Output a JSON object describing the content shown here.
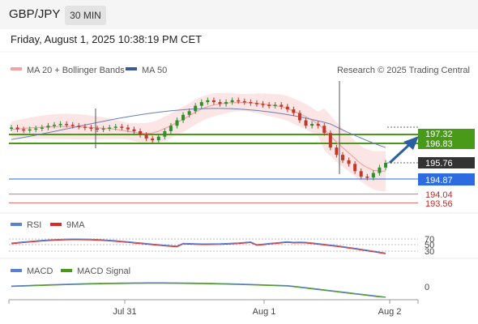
{
  "header": {
    "symbol": "GBP/JPY",
    "timeframe": "30 MIN"
  },
  "datetime": "Friday, August 1, 2025 10:38:19 PM CET",
  "legend_main": [
    {
      "label": "MA 20 + Bollinger Bands",
      "color": "#f4a3a3"
    },
    {
      "label": "MA 50",
      "color": "#3a5a9c"
    }
  ],
  "credit": "Research © 2025 Trading Central",
  "legend_rsi": [
    {
      "label": "RSI",
      "color": "#5b7fd6"
    },
    {
      "label": "9MA",
      "color": "#d62c2c"
    }
  ],
  "legend_macd": [
    {
      "label": "MACD",
      "color": "#5b7fd6"
    },
    {
      "label": "MACD Signal",
      "color": "#4a9a1a"
    }
  ],
  "colors": {
    "up": "#2f8f2f",
    "down": "#c0392b",
    "resistance": "#4a9a1a",
    "support": "#2c6be0",
    "target": "#d62c2c",
    "last": "#333333",
    "arrow": "#2c5f9e"
  },
  "chart_data": [
    {
      "type": "candlestick",
      "x_ticks": [
        "Jul 31",
        "Aug 1",
        "Aug 2"
      ],
      "y_ticks": [
        197.32,
        196.83,
        195.76,
        194.87,
        194.04,
        193.56
      ],
      "levels": [
        {
          "value": 197.32,
          "label": "197.32",
          "kind": "resistance"
        },
        {
          "value": 196.83,
          "label": "196.83",
          "kind": "resistance"
        },
        {
          "value": 195.76,
          "label": "195.76",
          "kind": "last"
        },
        {
          "value": 194.87,
          "label": "194.87",
          "kind": "support"
        },
        {
          "value": 194.04,
          "label": "194.04",
          "kind": "target"
        },
        {
          "value": 193.56,
          "label": "193.56",
          "kind": "target"
        }
      ],
      "close": [
        197.7,
        197.6,
        197.55,
        197.6,
        197.65,
        197.7,
        197.8,
        197.85,
        197.9,
        197.85,
        197.8,
        197.75,
        197.7,
        197.65,
        197.6,
        197.65,
        197.7,
        197.75,
        197.7,
        197.6,
        197.5,
        197.3,
        197.1,
        197.0,
        197.2,
        197.5,
        197.8,
        198.1,
        198.4,
        198.6,
        198.9,
        199.1,
        199.2,
        199.1,
        199.0,
        199.1,
        199.2,
        199.15,
        199.1,
        199.05,
        199.0,
        198.95,
        198.9,
        198.95,
        198.85,
        198.7,
        198.5,
        198.1,
        197.8,
        197.9,
        197.8,
        197.4,
        196.6,
        196.2,
        195.9,
        195.7,
        195.3,
        195.0,
        194.95,
        195.2,
        195.5,
        195.76
      ],
      "ma20": [
        197.6,
        197.62,
        197.65,
        197.68,
        197.7,
        197.72,
        197.74,
        197.75,
        197.76,
        197.76,
        197.75,
        197.74,
        197.72,
        197.7,
        197.68,
        197.66,
        197.64,
        197.6,
        197.55,
        197.5,
        197.45,
        197.4,
        197.38,
        197.4,
        197.5,
        197.65,
        197.8,
        197.98,
        198.15,
        198.35,
        198.55,
        198.72,
        198.85,
        198.95,
        199.0,
        199.05,
        199.07,
        199.08,
        199.08,
        199.06,
        199.03,
        199.0,
        198.95,
        198.9,
        198.85,
        198.75,
        198.6,
        198.45,
        198.3,
        198.1,
        197.9,
        197.6,
        197.25,
        196.9,
        196.6,
        196.3,
        196.0,
        195.7,
        195.5,
        195.35,
        195.3,
        195.3
      ],
      "ma50_x_range": [
        0,
        61
      ],
      "ma50_from_to": [
        197.0,
        197.6
      ],
      "ma50_peak": 198.75,
      "rsi_level_ticks": [
        70,
        50,
        30
      ],
      "macd_level_ticks": [
        0
      ]
    }
  ]
}
